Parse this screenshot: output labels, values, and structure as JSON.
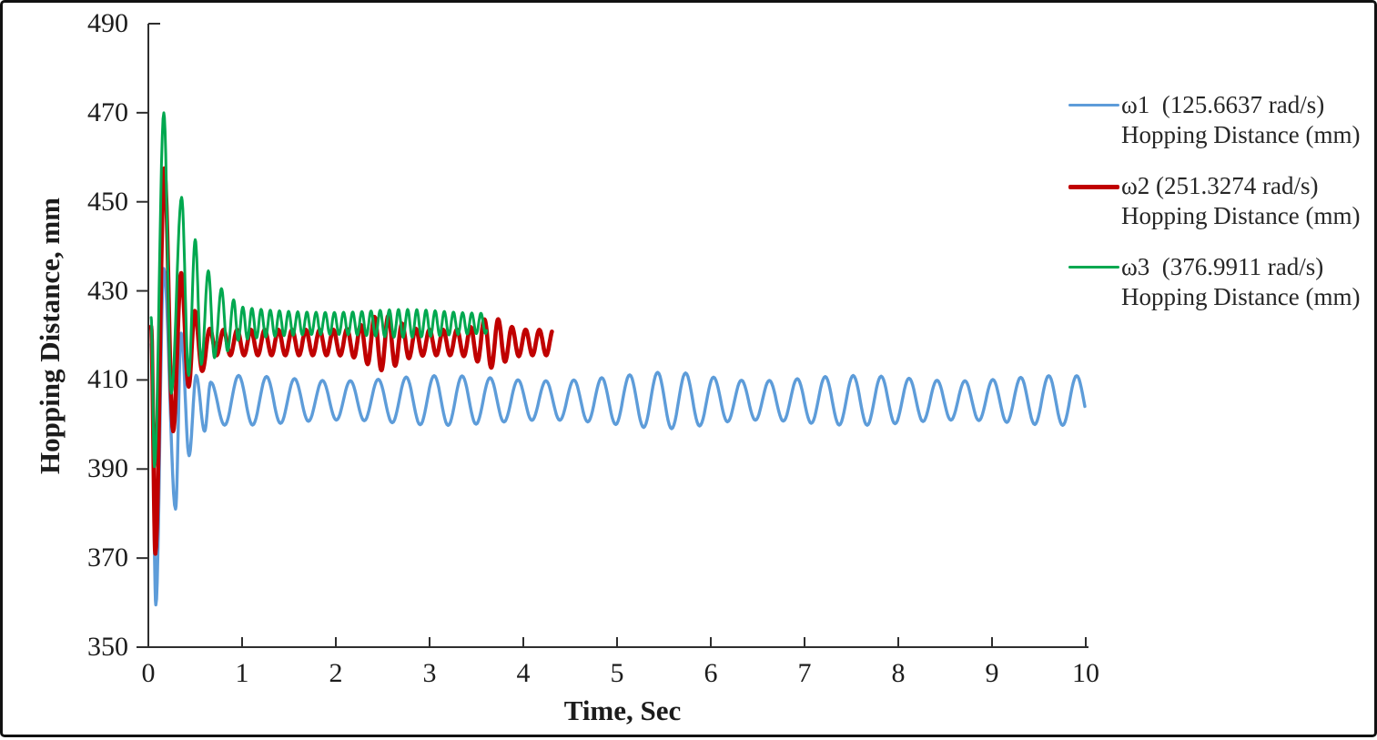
{
  "figure": {
    "kind": "line-chart",
    "background": "#ffffff",
    "border_color": "#111111",
    "axis_color": "#2e2e2e",
    "text_color": "#1c1c1c"
  },
  "legend": {
    "entries": [
      {
        "label": "ω1  (125.6637 rad/s)",
        "sublabel": "Hopping Distance (mm)",
        "color": "#5D9CD9",
        "thickness": 3
      },
      {
        "label": "ω2 (251.3274 rad/s)",
        "sublabel": "Hopping Distance (mm)",
        "color": "#C00000",
        "thickness": 5
      },
      {
        "label": "ω3  (376.9911 rad/s)",
        "sublabel": "Hopping Distance (mm)",
        "color": "#00A84F",
        "thickness": 3
      }
    ]
  },
  "chart_data": {
    "type": "line",
    "title": "",
    "xlabel": "Time, Sec",
    "ylabel": "Hopping Distance, mm",
    "xlim": [
      0,
      10
    ],
    "ylim": [
      350,
      490
    ],
    "x_ticks": [
      0,
      1,
      2,
      3,
      4,
      5,
      6,
      7,
      8,
      9,
      10
    ],
    "y_ticks": [
      350,
      370,
      390,
      410,
      430,
      450,
      470,
      490
    ],
    "grid": false,
    "legend_position": "right-top",
    "series": [
      {
        "name": "ω1 (125.6637 rad/s) Hopping Distance (mm)",
        "color": "#5D9CD9",
        "line_width": 3.4,
        "t_end": 10.0,
        "transient_extrema": [
          [
            0.03,
            418
          ],
          [
            0.08,
            359.5
          ],
          [
            0.165,
            435
          ],
          [
            0.29,
            381
          ],
          [
            0.35,
            420.5
          ],
          [
            0.435,
            393
          ],
          [
            0.51,
            411
          ],
          [
            0.6,
            398.5
          ],
          [
            0.665,
            409.5
          ]
        ],
        "steady": {
          "from": 0.665,
          "to": 10.0,
          "mean": 405.4,
          "amp": 5.0,
          "period": 0.298,
          "amp_mod": {
            "amp": 0.6,
            "period": 2.2,
            "t0": 0.4
          },
          "bursts": [
            {
              "t": 5.65,
              "amp": 0.9,
              "width": 0.45
            }
          ]
        }
      },
      {
        "name": "ω2 (251.3274 rad/s) Hopping Distance (mm)",
        "color": "#C00000",
        "line_width": 4.6,
        "t_end": 4.31,
        "transient_extrema": [
          [
            0.03,
            422
          ],
          [
            0.075,
            371
          ],
          [
            0.17,
            457.5
          ],
          [
            0.265,
            398.5
          ],
          [
            0.35,
            434
          ],
          [
            0.43,
            408.5
          ],
          [
            0.495,
            425.5
          ],
          [
            0.575,
            412
          ],
          [
            0.655,
            421.5
          ]
        ],
        "steady": {
          "from": 0.655,
          "to": 4.31,
          "mean": 418.4,
          "amp": 2.85,
          "period": 0.1465,
          "bursts": [
            {
              "t": 2.5,
              "amp": 3.4,
              "width": 0.22
            },
            {
              "t": 3.66,
              "amp": 2.8,
              "width": 0.18
            }
          ]
        }
      },
      {
        "name": "ω3 (376.9911 rad/s) Hopping Distance (mm)",
        "color": "#00A84F",
        "line_width": 3.0,
        "t_end": 3.61,
        "transient_extrema": [
          [
            0.03,
            424
          ],
          [
            0.065,
            390.5
          ],
          [
            0.165,
            470
          ],
          [
            0.245,
            407
          ],
          [
            0.355,
            451
          ],
          [
            0.43,
            411
          ],
          [
            0.5,
            441.5
          ],
          [
            0.565,
            413.5
          ],
          [
            0.64,
            434.5
          ],
          [
            0.705,
            415
          ],
          [
            0.78,
            430.5
          ],
          [
            0.845,
            416.5
          ],
          [
            0.91,
            428
          ]
        ],
        "steady": {
          "from": 0.91,
          "to": 3.61,
          "mean": 422.7,
          "amp": 2.2,
          "period": 0.0977,
          "amp_decay": {
            "a": 1.8,
            "r": 2.2
          },
          "bursts": [
            {
              "t": 2.75,
              "amp": 0.9,
              "width": 0.5
            }
          ]
        }
      }
    ]
  }
}
